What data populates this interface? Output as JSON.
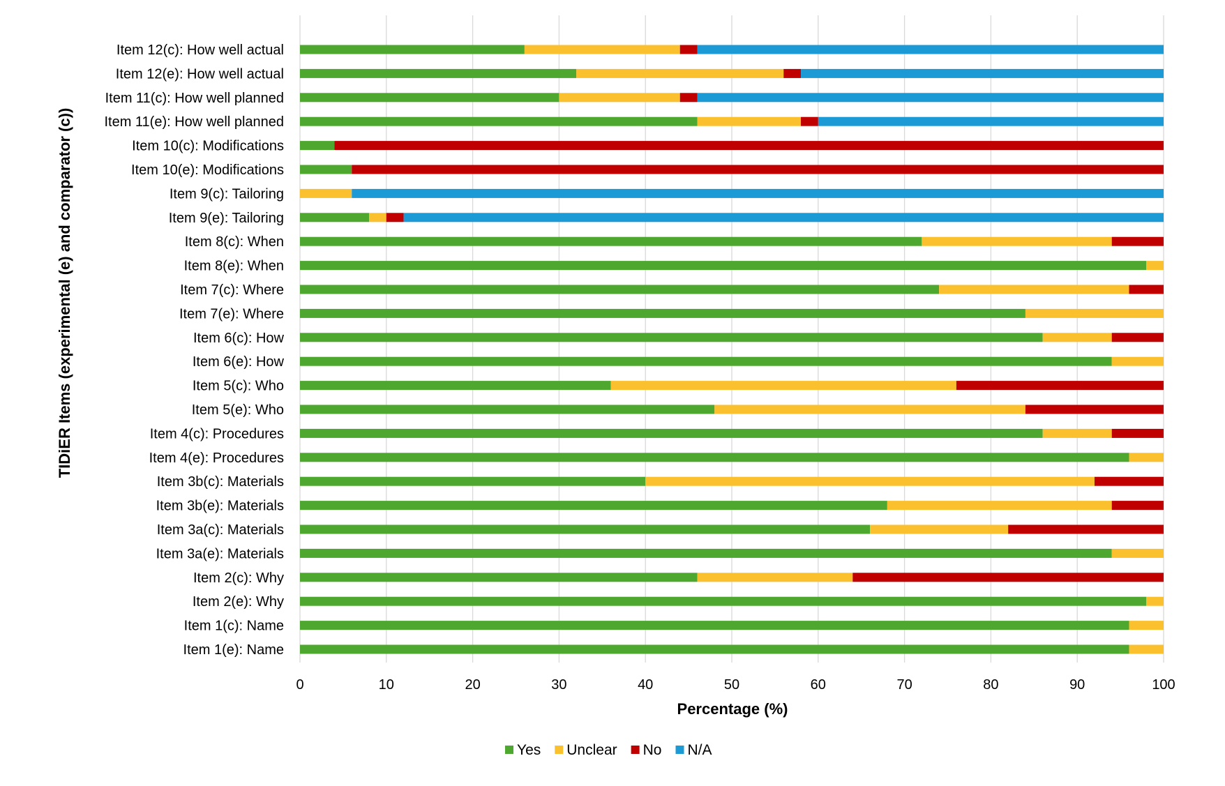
{
  "chart_data": {
    "type": "bar",
    "orientation": "horizontal",
    "stacked": true,
    "xlabel": "Percentage (%)",
    "ylabel": "TIDiER Items (experimental (e) and comparator (c))",
    "xlim": [
      0,
      100
    ],
    "xticks": [
      0,
      10,
      20,
      30,
      40,
      50,
      60,
      70,
      80,
      90,
      100
    ],
    "grid": "vertical",
    "legend_position": "bottom",
    "categories": [
      "Item 12(c): How well actual",
      "Item 12(e): How well actual",
      "Item 11(c): How well planned",
      "Item 11(e): How well planned",
      "Item 10(c): Modifications",
      "Item 10(e): Modifications",
      "Item 9(c): Tailoring",
      "Item 9(e): Tailoring",
      "Item 8(c): When",
      "Item 8(e): When",
      "Item 7(c): Where",
      "Item 7(e): Where",
      "Item 6(c): How",
      "Item 6(e): How",
      "Item 5(c): Who",
      "Item 5(e): Who",
      "Item 4(c): Procedures",
      "Item 4(e): Procedures",
      "Item 3b(c): Materials",
      "Item 3b(e): Materials",
      "Item 3a(c): Materials",
      "Item 3a(e): Materials",
      "Item 2(c): Why",
      "Item 2(e):  Why",
      "Item 1(c): Name",
      "Item 1(e): Name"
    ],
    "series": [
      {
        "name": "Yes",
        "color": "#4EA72E",
        "values": [
          26,
          32,
          30,
          46,
          4,
          6,
          0,
          8,
          72,
          98,
          74,
          84,
          86,
          94,
          36,
          48,
          86,
          96,
          40,
          68,
          66,
          94,
          46,
          98,
          96,
          96
        ]
      },
      {
        "name": "Unclear",
        "color": "#FBC02D",
        "values": [
          18,
          24,
          14,
          12,
          0,
          0,
          6,
          2,
          22,
          2,
          22,
          16,
          8,
          6,
          40,
          36,
          8,
          4,
          52,
          26,
          16,
          6,
          18,
          2,
          4,
          4
        ]
      },
      {
        "name": "No",
        "color": "#C00000",
        "values": [
          2,
          2,
          2,
          2,
          96,
          94,
          0,
          2,
          6,
          0,
          4,
          0,
          6,
          0,
          24,
          16,
          6,
          0,
          8,
          6,
          18,
          0,
          36,
          0,
          0,
          0
        ]
      },
      {
        "name": "N/A",
        "color": "#1C9AD6",
        "values": [
          54,
          42,
          54,
          40,
          0,
          0,
          94,
          88,
          0,
          0,
          0,
          0,
          0,
          0,
          0,
          0,
          0,
          0,
          0,
          0,
          0,
          0,
          0,
          0,
          0,
          0
        ]
      }
    ]
  }
}
